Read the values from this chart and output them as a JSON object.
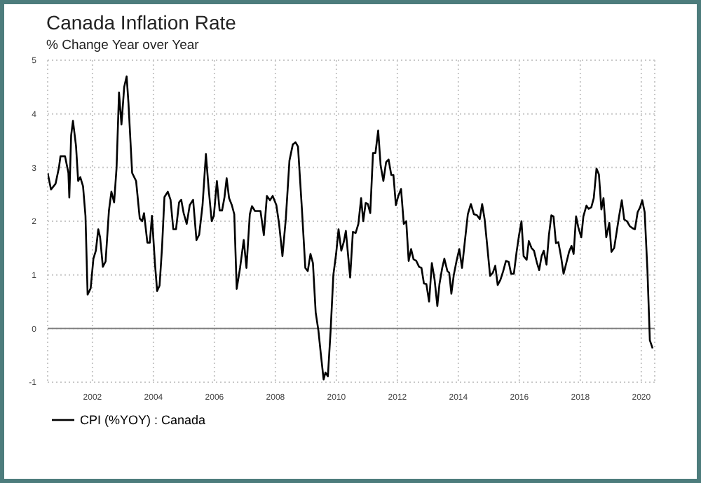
{
  "chart_data": {
    "type": "line",
    "title": "Canada Inflation Rate",
    "subtitle": "% Change Year over Year",
    "xlim": [
      2000.53,
      2020.44
    ],
    "xticks": [
      2002,
      2004,
      2006,
      2008,
      2010,
      2012,
      2014,
      2016,
      2018,
      2020
    ],
    "ylim": [
      -1,
      5
    ],
    "yticks": [
      -1,
      0,
      1,
      2,
      3,
      4,
      5
    ],
    "grid": true,
    "legend": "bottom left",
    "marker": "none",
    "line_style": "solid",
    "ref_lines": [
      {
        "axis": "y",
        "value": 0,
        "color": "#808080"
      }
    ],
    "series": [
      {
        "name": "CPI (%YOY) : Canada",
        "color": "#000000",
        "x": [
          2000.53,
          2000.64,
          2000.79,
          2000.9,
          2000.95,
          2001.1,
          2001.21,
          2001.24,
          2001.3,
          2001.36,
          2001.46,
          2001.53,
          2001.6,
          2001.69,
          2001.77,
          2001.84,
          2001.94,
          2002.03,
          2002.11,
          2002.19,
          2002.25,
          2002.34,
          2002.43,
          2002.54,
          2002.62,
          2002.71,
          2002.79,
          2002.87,
          2002.95,
          2003.04,
          2003.12,
          2003.18,
          2003.3,
          2003.43,
          2003.55,
          2003.63,
          2003.69,
          2003.8,
          2003.88,
          2003.95,
          2004.05,
          2004.12,
          2004.2,
          2004.28,
          2004.36,
          2004.47,
          2004.56,
          2004.65,
          2004.74,
          2004.84,
          2004.91,
          2004.99,
          2005.09,
          2005.19,
          2005.3,
          2005.41,
          2005.5,
          2005.61,
          2005.72,
          2005.81,
          2005.91,
          2005.98,
          2006.08,
          2006.17,
          2006.25,
          2006.33,
          2006.4,
          2006.48,
          2006.57,
          2006.65,
          2006.73,
          2006.84,
          2006.96,
          2007.05,
          2007.16,
          2007.23,
          2007.33,
          2007.51,
          2007.62,
          2007.72,
          2007.82,
          2007.91,
          2008.03,
          2008.12,
          2008.23,
          2008.34,
          2008.46,
          2008.57,
          2008.66,
          2008.74,
          2008.87,
          2008.98,
          2009.06,
          2009.15,
          2009.23,
          2009.32,
          2009.41,
          2009.49,
          2009.58,
          2009.64,
          2009.72,
          2009.81,
          2009.9,
          2009.99,
          2010.07,
          2010.16,
          2010.24,
          2010.31,
          2010.45,
          2010.54,
          2010.63,
          2010.72,
          2010.81,
          2010.88,
          2010.96,
          2011.03,
          2011.11,
          2011.2,
          2011.28,
          2011.37,
          2011.45,
          2011.54,
          2011.63,
          2011.71,
          2011.8,
          2011.87,
          2011.95,
          2012.03,
          2012.12,
          2012.21,
          2012.29,
          2012.37,
          2012.45,
          2012.53,
          2012.62,
          2012.71,
          2012.79,
          2012.87,
          2012.95,
          2013.04,
          2013.13,
          2013.22,
          2013.31,
          2013.38,
          2013.47,
          2013.54,
          2013.64,
          2013.7,
          2013.77,
          2013.85,
          2013.94,
          2014.03,
          2014.12,
          2014.21,
          2014.31,
          2014.41,
          2014.51,
          2014.61,
          2014.7,
          2014.78,
          2014.86,
          2014.95,
          2015.04,
          2015.13,
          2015.21,
          2015.29,
          2015.38,
          2015.47,
          2015.56,
          2015.65,
          2015.73,
          2015.82,
          2015.91,
          2015.99,
          2016.07,
          2016.14,
          2016.24,
          2016.31,
          2016.4,
          2016.48,
          2016.57,
          2016.65,
          2016.73,
          2016.8,
          2016.89,
          2016.97,
          2017.05,
          2017.12,
          2017.2,
          2017.28,
          2017.37,
          2017.45,
          2017.54,
          2017.63,
          2017.71,
          2017.78,
          2017.86,
          2017.94,
          2018.03,
          2018.1,
          2018.2,
          2018.27,
          2018.36,
          2018.44,
          2018.53,
          2018.61,
          2018.69,
          2018.76,
          2018.85,
          2018.95,
          2019.02,
          2019.11,
          2019.21,
          2019.27,
          2019.36,
          2019.44,
          2019.53,
          2019.62,
          2019.71,
          2019.79,
          2019.88,
          2019.96,
          2020.03,
          2020.11,
          2020.2,
          2020.28,
          2020.37
        ],
        "values": [
          2.9,
          2.59,
          2.7,
          3.0,
          3.21,
          3.21,
          2.9,
          2.44,
          3.6,
          3.87,
          3.4,
          2.75,
          2.82,
          2.65,
          2.1,
          0.63,
          0.75,
          1.3,
          1.45,
          1.85,
          1.7,
          1.15,
          1.25,
          2.2,
          2.55,
          2.35,
          3.0,
          4.4,
          3.8,
          4.5,
          4.7,
          4.2,
          2.9,
          2.75,
          2.05,
          2.0,
          2.15,
          1.6,
          1.6,
          2.1,
          1.2,
          0.7,
          0.8,
          1.5,
          2.45,
          2.55,
          2.4,
          1.85,
          1.85,
          2.35,
          2.4,
          2.15,
          1.95,
          2.3,
          2.4,
          1.65,
          1.75,
          2.3,
          3.25,
          2.6,
          2.0,
          2.1,
          2.75,
          2.2,
          2.2,
          2.45,
          2.8,
          2.43,
          2.3,
          2.13,
          0.74,
          1.13,
          1.65,
          1.13,
          2.13,
          2.28,
          2.19,
          2.19,
          1.74,
          2.47,
          2.39,
          2.47,
          2.3,
          1.95,
          1.35,
          2.04,
          3.13,
          3.43,
          3.47,
          3.39,
          2.21,
          1.13,
          1.07,
          1.39,
          1.22,
          0.3,
          -0.04,
          -0.48,
          -0.95,
          -0.82,
          -0.89,
          -0.04,
          1.0,
          1.39,
          1.85,
          1.45,
          1.61,
          1.82,
          0.95,
          1.8,
          1.78,
          1.95,
          2.43,
          2.0,
          2.34,
          2.32,
          2.15,
          3.27,
          3.27,
          3.69,
          3.04,
          2.75,
          3.1,
          3.15,
          2.86,
          2.86,
          2.3,
          2.47,
          2.6,
          1.95,
          2.0,
          1.26,
          1.48,
          1.29,
          1.26,
          1.15,
          1.13,
          0.84,
          0.83,
          0.5,
          1.22,
          0.91,
          0.42,
          0.83,
          1.13,
          1.3,
          1.07,
          1.04,
          0.65,
          1.0,
          1.26,
          1.48,
          1.13,
          1.61,
          2.13,
          2.32,
          2.13,
          2.11,
          2.04,
          2.32,
          2.04,
          1.52,
          0.98,
          1.04,
          1.17,
          0.81,
          0.91,
          1.07,
          1.26,
          1.24,
          1.02,
          1.02,
          1.43,
          1.74,
          2.0,
          1.35,
          1.28,
          1.63,
          1.5,
          1.45,
          1.24,
          1.09,
          1.35,
          1.45,
          1.19,
          1.74,
          2.11,
          2.09,
          1.59,
          1.61,
          1.33,
          1.02,
          1.22,
          1.43,
          1.54,
          1.39,
          2.09,
          1.87,
          1.7,
          2.09,
          2.29,
          2.23,
          2.26,
          2.43,
          2.98,
          2.87,
          2.22,
          2.43,
          1.7,
          1.97,
          1.43,
          1.5,
          1.87,
          2.09,
          2.39,
          2.03,
          2.0,
          1.91,
          1.87,
          1.85,
          2.17,
          2.26,
          2.39,
          2.17,
          1.09,
          -0.22,
          -0.37
        ]
      }
    ]
  }
}
